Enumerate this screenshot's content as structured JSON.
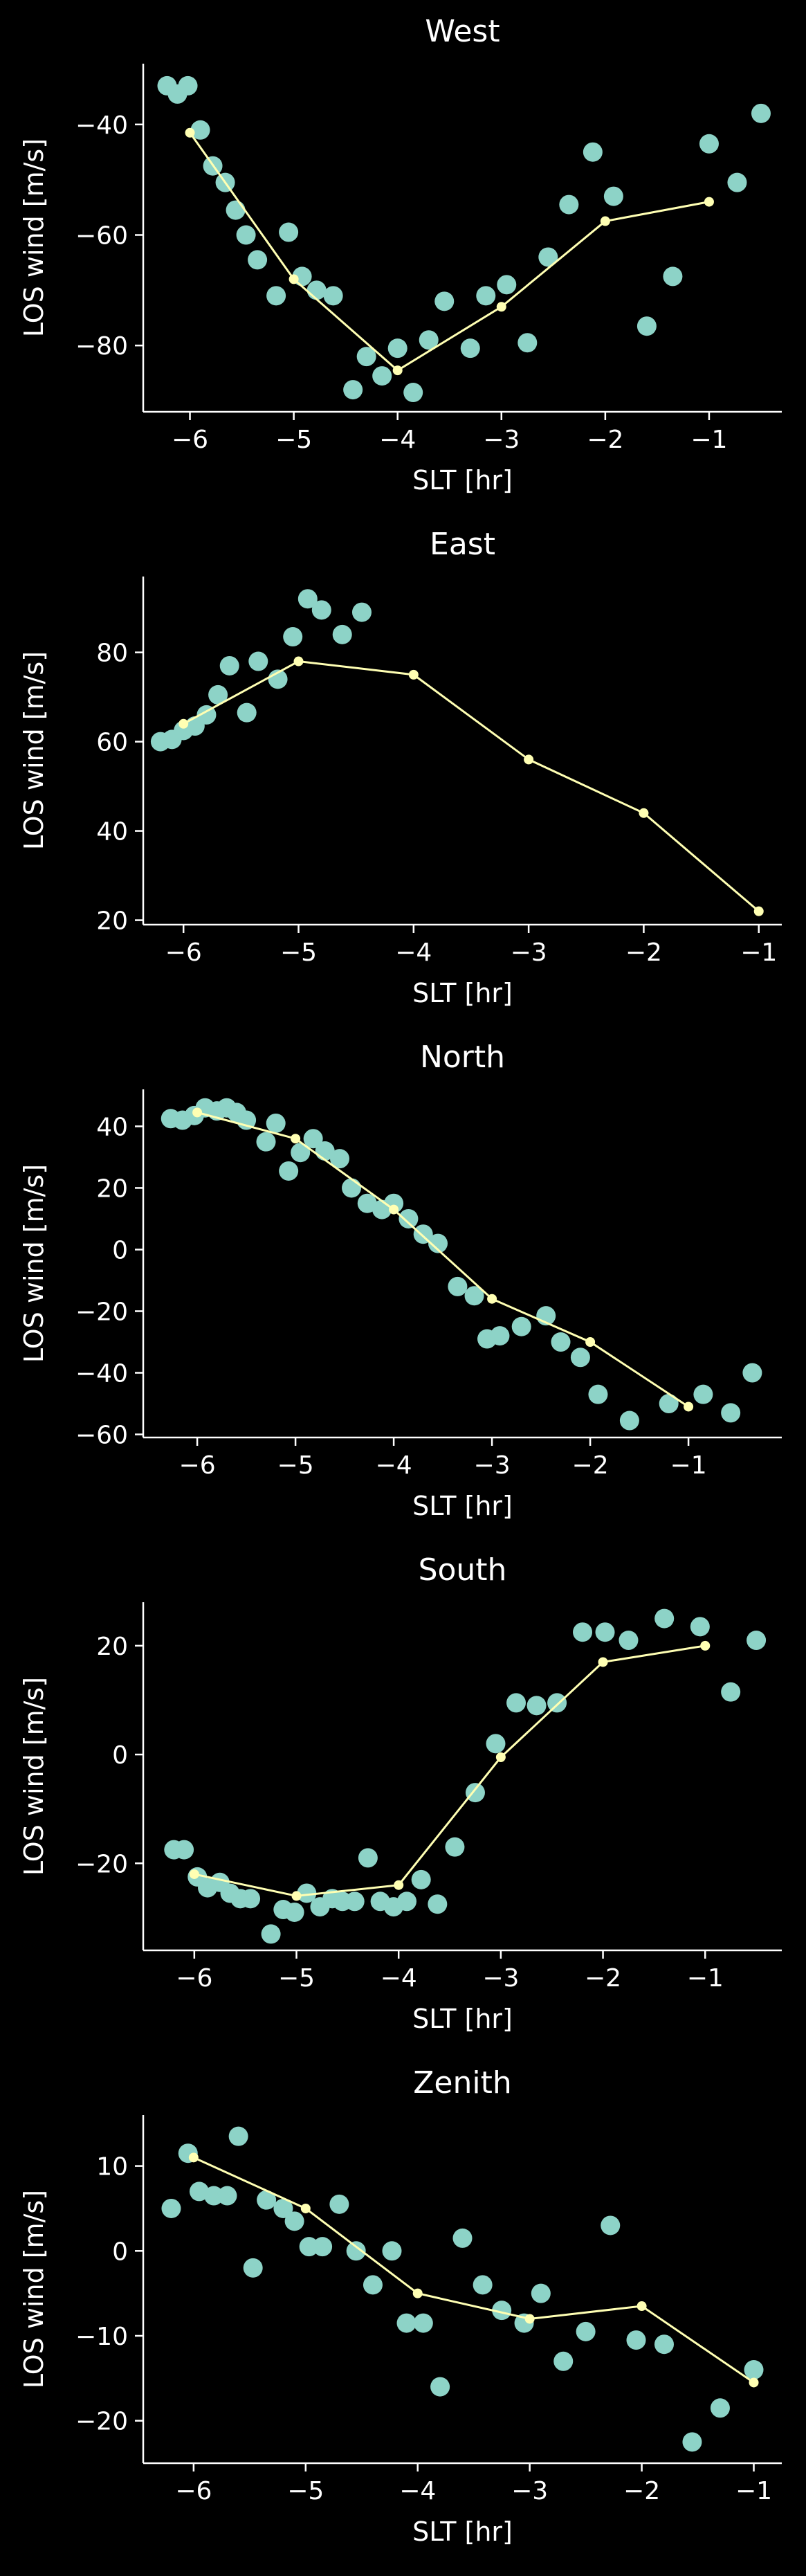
{
  "chart_data": [
    {
      "type": "scatter",
      "title": "West",
      "xlabel": "SLT [hr]",
      "ylabel": "LOS wind [m/s]",
      "xlim": [
        -6.45,
        -0.3
      ],
      "ylim": [
        -92,
        -29
      ],
      "xticks": [
        -6,
        -5,
        -4,
        -3,
        -2,
        -1
      ],
      "yticks": [
        -80,
        -60,
        -40
      ],
      "grid": false,
      "colors": {
        "points": "#8dd3c7",
        "line": "#ffffb3",
        "axes": "#ffffff",
        "background": "#000000"
      },
      "series": [
        {
          "kind": "points",
          "x": [
            -6.22,
            -6.12,
            -6.02,
            -5.9,
            -5.78,
            -5.66,
            -5.56,
            -5.46,
            -5.35,
            -5.17,
            -5.05,
            -4.92,
            -4.78,
            -4.62,
            -4.43,
            -4.3,
            -4.15,
            -4.0,
            -3.85,
            -3.7,
            -3.55,
            -3.3,
            -3.15,
            -2.95,
            -2.75,
            -2.55,
            -2.35,
            -2.12,
            -1.92,
            -1.6,
            -1.35,
            -1.0,
            -0.73,
            -0.5
          ],
          "y": [
            -33,
            -34.5,
            -33,
            -41,
            -47.5,
            -50.5,
            -55.5,
            -60,
            -64.5,
            -71,
            -59.5,
            -67.5,
            -70,
            -71,
            -88,
            -82,
            -85.5,
            -80.5,
            -88.5,
            -79,
            -72,
            -80.5,
            -71,
            -69,
            -79.5,
            -64,
            -54.5,
            -45,
            -53,
            -76.5,
            -67.5,
            -43.5,
            -50.5,
            -38
          ]
        },
        {
          "kind": "line",
          "x": [
            -6,
            -5,
            -4,
            -3,
            -2,
            -1
          ],
          "y": [
            -41.5,
            -68,
            -84.5,
            -73,
            -57.5,
            -54
          ]
        }
      ]
    },
    {
      "type": "scatter",
      "title": "East",
      "xlabel": "SLT [hr]",
      "ylabel": "LOS wind [m/s]",
      "xlim": [
        -6.35,
        -0.8
      ],
      "ylim": [
        19,
        97
      ],
      "xticks": [
        -6,
        -5,
        -4,
        -3,
        -2,
        -1
      ],
      "yticks": [
        20,
        40,
        60,
        80
      ],
      "grid": false,
      "colors": {
        "points": "#8dd3c7",
        "line": "#ffffb3",
        "axes": "#ffffff",
        "background": "#000000"
      },
      "series": [
        {
          "kind": "points",
          "x": [
            -6.2,
            -6.1,
            -6.0,
            -5.9,
            -5.8,
            -5.7,
            -5.6,
            -5.45,
            -5.35,
            -5.18,
            -5.05,
            -4.92,
            -4.8,
            -4.62,
            -4.45
          ],
          "y": [
            60,
            60.5,
            62.5,
            63.5,
            66,
            70.5,
            77,
            66.5,
            78,
            74,
            83.5,
            92,
            89.5,
            84,
            89
          ]
        },
        {
          "kind": "line",
          "x": [
            -6,
            -5,
            -4,
            -3,
            -2,
            -1
          ],
          "y": [
            64,
            78,
            75,
            56,
            44,
            22
          ]
        }
      ]
    },
    {
      "type": "scatter",
      "title": "North",
      "xlabel": "SLT [hr]",
      "ylabel": "LOS wind [m/s]",
      "xlim": [
        -6.55,
        -0.05
      ],
      "ylim": [
        -61,
        52
      ],
      "xticks": [
        -6,
        -5,
        -4,
        -3,
        -2,
        -1
      ],
      "yticks": [
        -60,
        -40,
        -20,
        0,
        20,
        40
      ],
      "grid": false,
      "colors": {
        "points": "#8dd3c7",
        "line": "#ffffb3",
        "axes": "#ffffff",
        "background": "#000000"
      },
      "series": [
        {
          "kind": "points",
          "x": [
            -6.27,
            -6.15,
            -6.03,
            -5.92,
            -5.8,
            -5.7,
            -5.6,
            -5.5,
            -5.3,
            -5.2,
            -5.07,
            -4.95,
            -4.82,
            -4.7,
            -4.55,
            -4.43,
            -4.27,
            -4.12,
            -4.0,
            -3.85,
            -3.7,
            -3.55,
            -3.35,
            -3.18,
            -3.05,
            -2.92,
            -2.7,
            -2.45,
            -2.3,
            -2.1,
            -1.92,
            -1.6,
            -1.2,
            -0.85,
            -0.57,
            -0.35
          ],
          "y": [
            42.5,
            42,
            43.5,
            46,
            45,
            46,
            44.5,
            42,
            35,
            41,
            25.5,
            31.5,
            36,
            32,
            29.5,
            20,
            15,
            13,
            15,
            10,
            5,
            2,
            -12,
            -15,
            -29,
            -28,
            -25,
            -21.5,
            -30,
            -35,
            -47,
            -55.5,
            -50,
            -47,
            -53,
            -40
          ]
        },
        {
          "kind": "line",
          "x": [
            -6,
            -5,
            -4,
            -3,
            -2,
            -1
          ],
          "y": [
            44.5,
            36,
            13,
            -16,
            -30,
            -51
          ]
        }
      ]
    },
    {
      "type": "scatter",
      "title": "South",
      "xlabel": "SLT [hr]",
      "ylabel": "LOS wind [m/s]",
      "xlim": [
        -6.5,
        -0.25
      ],
      "ylim": [
        -36,
        28
      ],
      "xticks": [
        -6,
        -5,
        -4,
        -3,
        -2,
        -1
      ],
      "yticks": [
        -20,
        0,
        20
      ],
      "grid": false,
      "colors": {
        "points": "#8dd3c7",
        "line": "#ffffb3",
        "axes": "#ffffff",
        "background": "#000000"
      },
      "series": [
        {
          "kind": "points",
          "x": [
            -6.2,
            -6.1,
            -5.97,
            -5.87,
            -5.75,
            -5.65,
            -5.55,
            -5.45,
            -5.25,
            -5.13,
            -5.02,
            -4.9,
            -4.77,
            -4.65,
            -4.55,
            -4.43,
            -4.3,
            -4.18,
            -4.05,
            -3.92,
            -3.78,
            -3.62,
            -3.45,
            -3.25,
            -3.05,
            -2.85,
            -2.65,
            -2.45,
            -2.2,
            -1.98,
            -1.75,
            -1.4,
            -1.05,
            -0.75,
            -0.5
          ],
          "y": [
            -17.5,
            -17.5,
            -22.5,
            -24.5,
            -23.5,
            -25.5,
            -26.5,
            -26.5,
            -33,
            -28.5,
            -29,
            -25.5,
            -28,
            -26.5,
            -27,
            -27,
            -19,
            -27,
            -28,
            -27,
            -23,
            -27.5,
            -17,
            -7,
            2,
            9.5,
            9,
            9.5,
            22.5,
            22.5,
            21,
            25,
            23.5,
            11.5,
            21
          ]
        },
        {
          "kind": "line",
          "x": [
            -6,
            -5,
            -4,
            -3,
            -2,
            -1
          ],
          "y": [
            -22,
            -26,
            -24,
            -0.5,
            17,
            20
          ]
        }
      ]
    },
    {
      "type": "scatter",
      "title": "Zenith",
      "xlabel": "SLT [hr]",
      "ylabel": "LOS wind [m/s]",
      "xlim": [
        -6.45,
        -0.75
      ],
      "ylim": [
        -25,
        16
      ],
      "xticks": [
        -6,
        -5,
        -4,
        -3,
        -2,
        -1
      ],
      "yticks": [
        -20,
        -10,
        0,
        10
      ],
      "grid": false,
      "colors": {
        "points": "#8dd3c7",
        "line": "#ffffb3",
        "axes": "#ffffff",
        "background": "#000000"
      },
      "series": [
        {
          "kind": "points",
          "x": [
            -6.2,
            -6.05,
            -5.95,
            -5.82,
            -5.7,
            -5.6,
            -5.47,
            -5.35,
            -5.2,
            -5.1,
            -4.97,
            -4.85,
            -4.7,
            -4.55,
            -4.4,
            -4.23,
            -4.1,
            -3.95,
            -3.8,
            -3.6,
            -3.42,
            -3.25,
            -3.05,
            -2.9,
            -2.7,
            -2.5,
            -2.28,
            -2.05,
            -1.8,
            -1.55,
            -1.3,
            -1.0
          ],
          "y": [
            5,
            11.5,
            7,
            6.5,
            6.5,
            13.5,
            -2,
            6,
            5,
            3.5,
            0.5,
            0.5,
            5.5,
            0,
            -4,
            0,
            -8.5,
            -8.5,
            -16,
            1.5,
            -4,
            -7,
            -8.5,
            -5,
            -13,
            -9.5,
            3,
            -10.5,
            -11,
            -22.5,
            -18.5,
            -14
          ]
        },
        {
          "kind": "line",
          "x": [
            -6,
            -5,
            -4,
            -3,
            -2,
            -1
          ],
          "y": [
            11,
            5,
            -5,
            -8,
            -6.5,
            -15.5
          ]
        }
      ]
    }
  ]
}
